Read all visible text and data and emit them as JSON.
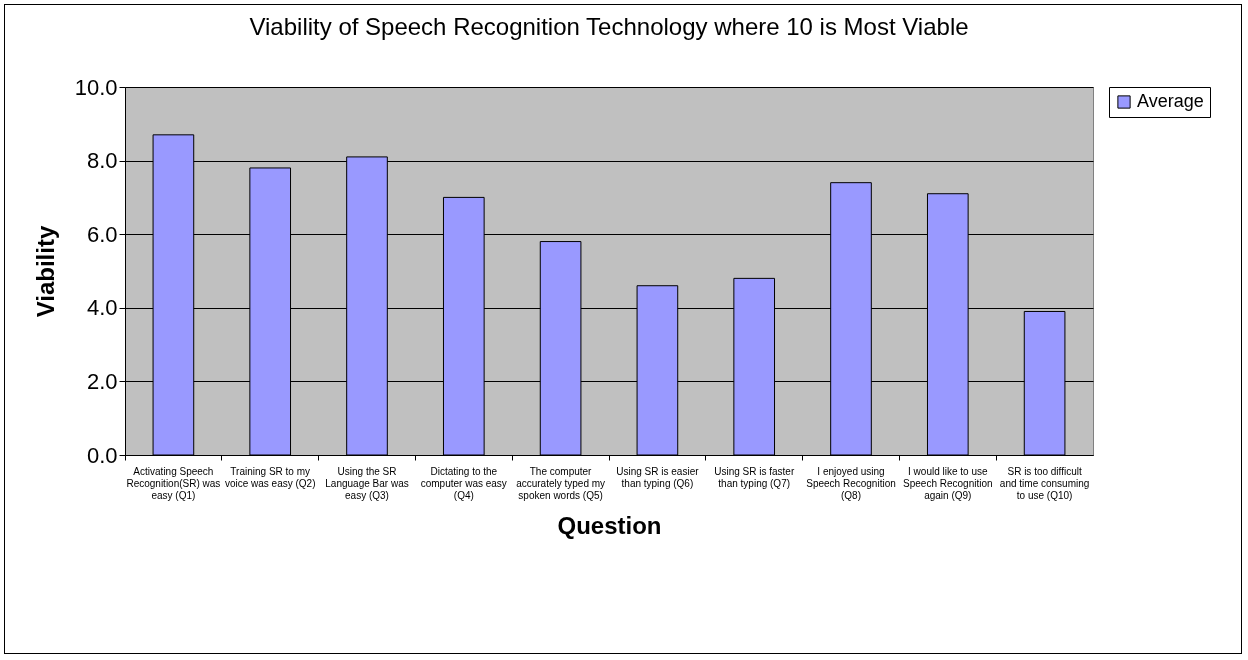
{
  "chart_data": {
    "type": "bar",
    "title": "Viability of Speech Recognition Technology where 10 is Most Viable",
    "xlabel": "Question",
    "ylabel": "Viability",
    "categories": [
      "Activating Speech Recognition(SR) was easy (Q1)",
      "Training SR to my voice was easy (Q2)",
      "Using the SR Language Bar was easy (Q3)",
      "Dictating to the computer was easy (Q4)",
      "The computer accurately typed my spoken words (Q5)",
      "Using SR is easier than typing (Q6)",
      "Using SR is faster than typing (Q7)",
      "I enjoyed using Speech Recognition (Q8)",
      "I would like to use Speech Recognition again (Q9)",
      "SR is too difficult and time consuming to use (Q10)"
    ],
    "series": [
      {
        "name": "Average",
        "color": "#9999ff",
        "values": [
          8.7,
          7.8,
          8.1,
          7.0,
          5.8,
          4.6,
          4.8,
          7.4,
          7.1,
          3.9
        ]
      }
    ],
    "ylim": [
      0,
      10
    ],
    "yticks": [
      {
        "value": 0,
        "label": "0.0"
      },
      {
        "value": 2,
        "label": "2.0"
      },
      {
        "value": 4,
        "label": "4.0"
      },
      {
        "value": 6,
        "label": "6.0"
      },
      {
        "value": 8,
        "label": "8.0"
      },
      {
        "value": 10,
        "label": "10.0"
      }
    ],
    "grid": "y",
    "legend": "right"
  }
}
